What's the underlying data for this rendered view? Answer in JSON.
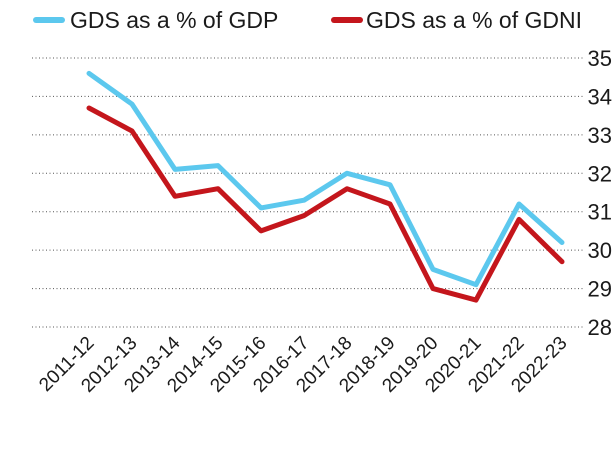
{
  "chart_data": {
    "type": "line",
    "title": "",
    "xlabel": "",
    "ylabel": "",
    "categories": [
      "2011-12",
      "2012-13",
      "2013-14",
      "2014-15",
      "2015-16",
      "2016-17",
      "2017-18",
      "2018-19",
      "2019-20",
      "2020-21",
      "2021-22",
      "2022-23"
    ],
    "series": [
      {
        "name": "GDS as a % of GDP",
        "color": "#5cc8ee",
        "values": [
          34.6,
          33.8,
          32.1,
          32.2,
          31.1,
          31.3,
          32.0,
          31.7,
          29.5,
          29.1,
          31.2,
          30.2
        ]
      },
      {
        "name": "GDS as a % of GDNI",
        "color": "#c4161c",
        "values": [
          33.7,
          33.1,
          31.4,
          31.6,
          30.5,
          30.9,
          31.6,
          31.2,
          29.0,
          28.7,
          30.8,
          29.7
        ]
      }
    ],
    "yticks": [
      28,
      29,
      30,
      31,
      32,
      33,
      34,
      35
    ],
    "ylim": [
      28,
      35
    ],
    "grid": true,
    "legend_position": "top-left",
    "y_axis_side": "right"
  }
}
